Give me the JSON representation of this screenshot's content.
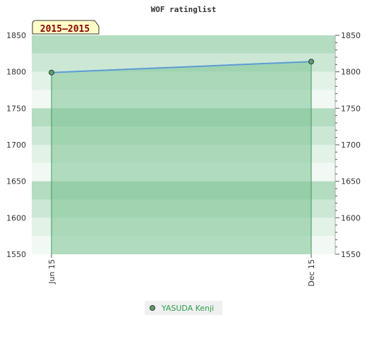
{
  "chart_data": {
    "type": "area",
    "title": "WOF ratinglist",
    "badge": "2015–2015",
    "x": [
      "Jun 15",
      "Dec 15"
    ],
    "series": [
      {
        "name": "YASUDA Kenji",
        "values": [
          1799,
          1814
        ]
      }
    ],
    "ylim": [
      1550,
      1850
    ],
    "yticks": [
      1550,
      1600,
      1650,
      1700,
      1750,
      1800,
      1850
    ],
    "grid": true,
    "legend": "bottom-center",
    "colors": {
      "line": "#5b9bd5",
      "area": "#7cc394",
      "marker": "#5aa36b",
      "band_a": "#b3dcc1",
      "band_b": "#cce8d5",
      "band_c": "#e2f2e7",
      "band_d": "#f2f9f4",
      "badge_bg": "#ffffc8",
      "legend_text": "#2e9e4f"
    }
  }
}
